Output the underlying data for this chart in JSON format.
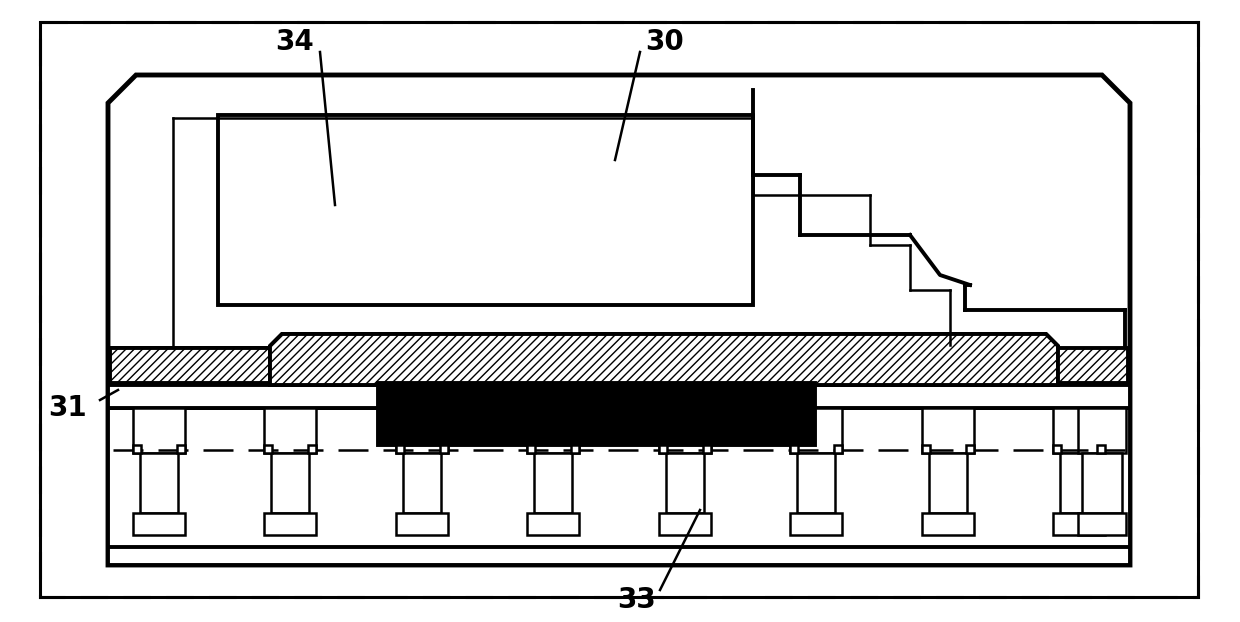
{
  "bg_color": "#ffffff",
  "line_color": "#000000",
  "fig_width": 12.4,
  "fig_height": 6.22,
  "dpi": 100,
  "label_fontsize": 20,
  "lw_outer": 3.5,
  "lw_main": 2.8,
  "lw_thin": 1.8,
  "lw_border": 2.2
}
